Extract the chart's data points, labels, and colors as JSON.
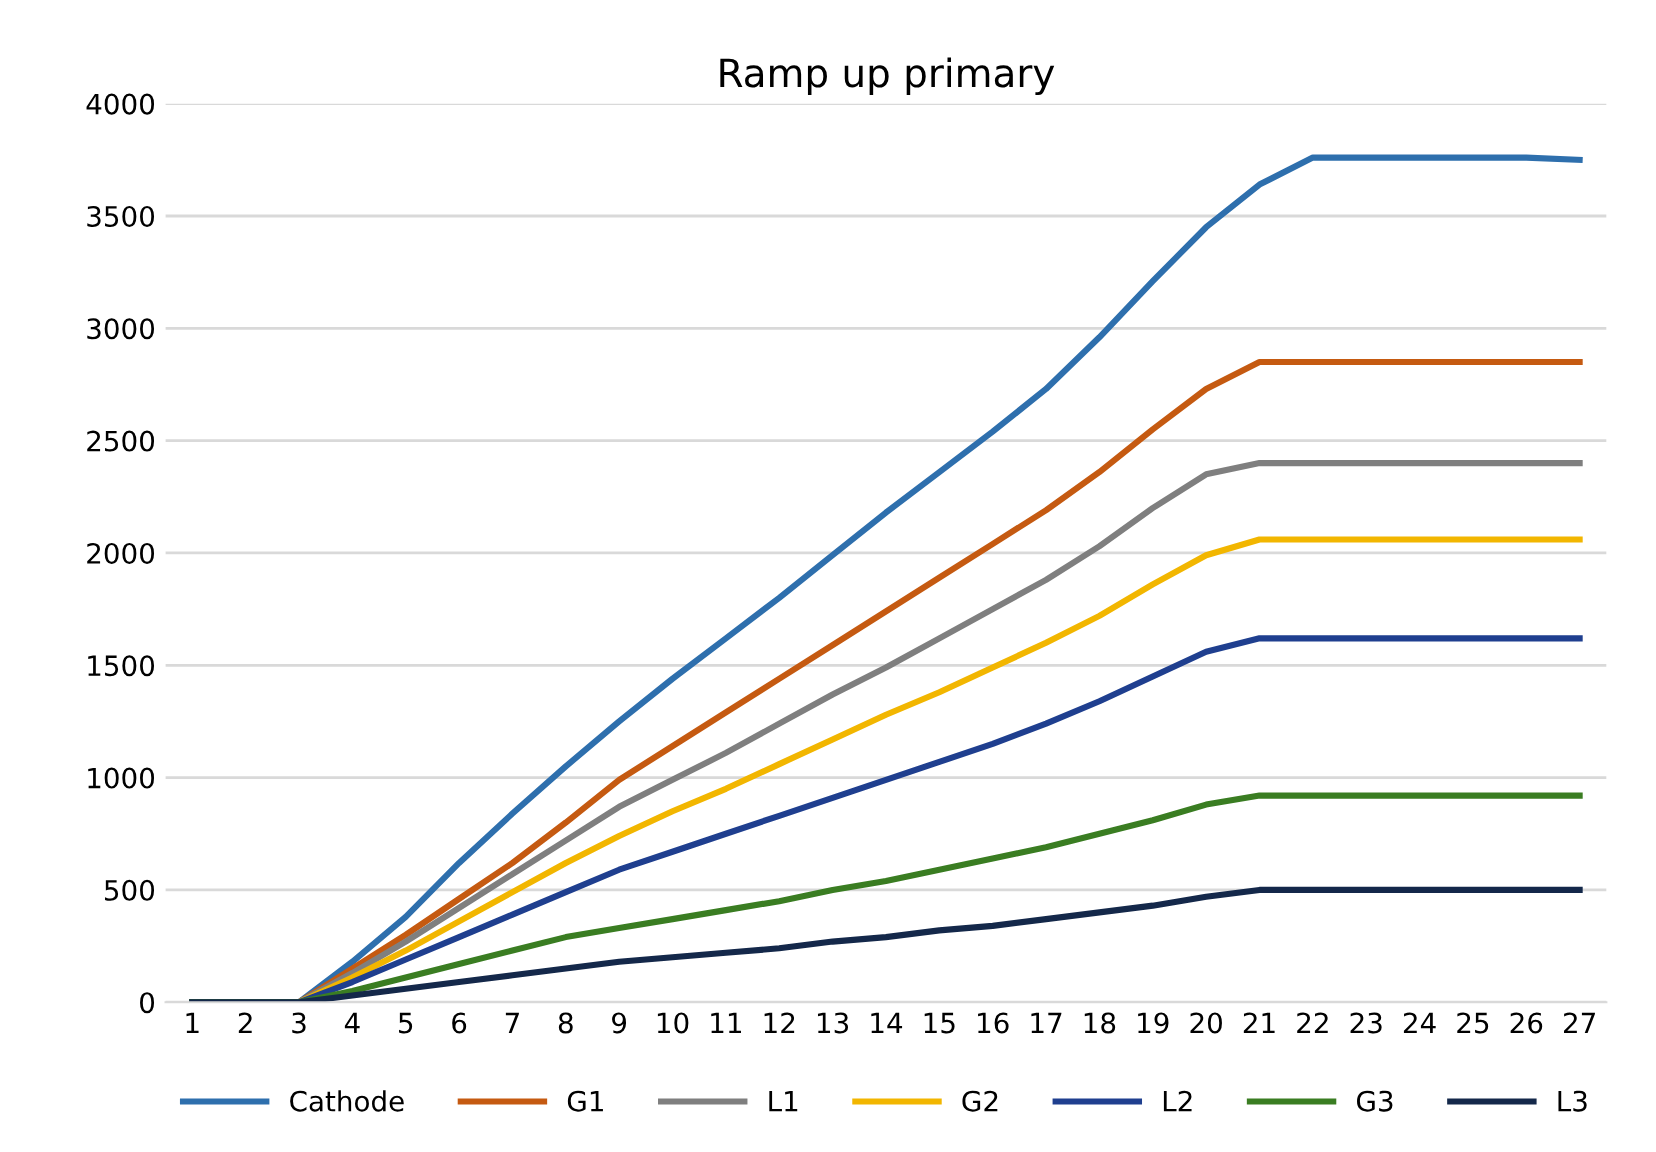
{
  "chart_data": {
    "type": "line",
    "title": "Ramp up primary",
    "categories": [
      "1",
      "2",
      "3",
      "4",
      "5",
      "6",
      "7",
      "8",
      "9",
      "10",
      "11",
      "12",
      "13",
      "14",
      "15",
      "16",
      "17",
      "18",
      "19",
      "20",
      "21",
      "22",
      "23",
      "24",
      "25",
      "26",
      "27"
    ],
    "ylim": [
      0,
      4000
    ],
    "yticks": [
      0,
      500,
      1000,
      1500,
      2000,
      2500,
      3000,
      3500,
      4000
    ],
    "grid": "y",
    "legend": "bottom",
    "series": [
      {
        "name": "Cathode",
        "color": "#2e6fad",
        "values": [
          0,
          0,
          0,
          180,
          380,
          620,
          840,
          1050,
          1250,
          1440,
          1620,
          1800,
          1990,
          2180,
          2360,
          2540,
          2730,
          2960,
          3210,
          3450,
          3640,
          3760,
          3760,
          3760,
          3760,
          3760,
          3750
        ]
      },
      {
        "name": "G1",
        "color": "#c55a11",
        "values": [
          0,
          0,
          0,
          150,
          300,
          460,
          620,
          800,
          990,
          1140,
          1290,
          1440,
          1590,
          1740,
          1890,
          2040,
          2190,
          2360,
          2550,
          2730,
          2850,
          2850,
          2850,
          2850,
          2850,
          2850,
          2850
        ]
      },
      {
        "name": "L1",
        "color": "#7f7f7f",
        "values": [
          0,
          0,
          0,
          130,
          270,
          420,
          570,
          720,
          870,
          990,
          1110,
          1240,
          1370,
          1490,
          1620,
          1750,
          1880,
          2030,
          2200,
          2350,
          2400,
          2400,
          2400,
          2400,
          2400,
          2400,
          2400
        ]
      },
      {
        "name": "G2",
        "color": "#f2b600",
        "values": [
          0,
          0,
          0,
          110,
          230,
          360,
          490,
          620,
          740,
          850,
          950,
          1060,
          1170,
          1280,
          1380,
          1490,
          1600,
          1720,
          1860,
          1990,
          2060,
          2060,
          2060,
          2060,
          2060,
          2060,
          2060
        ]
      },
      {
        "name": "L2",
        "color": "#1f3f8f",
        "values": [
          0,
          0,
          0,
          90,
          190,
          290,
          390,
          490,
          590,
          670,
          750,
          830,
          910,
          990,
          1070,
          1150,
          1240,
          1340,
          1450,
          1560,
          1620,
          1620,
          1620,
          1620,
          1620,
          1620,
          1620
        ]
      },
      {
        "name": "G3",
        "color": "#3a7d22",
        "values": [
          0,
          0,
          0,
          50,
          110,
          170,
          230,
          290,
          330,
          370,
          410,
          450,
          500,
          540,
          590,
          640,
          690,
          750,
          810,
          880,
          920,
          920,
          920,
          920,
          920,
          920,
          920
        ]
      },
      {
        "name": "L3",
        "color": "#14284a",
        "values": [
          0,
          0,
          0,
          30,
          60,
          90,
          120,
          150,
          180,
          200,
          220,
          240,
          270,
          290,
          320,
          340,
          370,
          400,
          430,
          470,
          500,
          500,
          500,
          500,
          500,
          500,
          500
        ]
      }
    ]
  }
}
